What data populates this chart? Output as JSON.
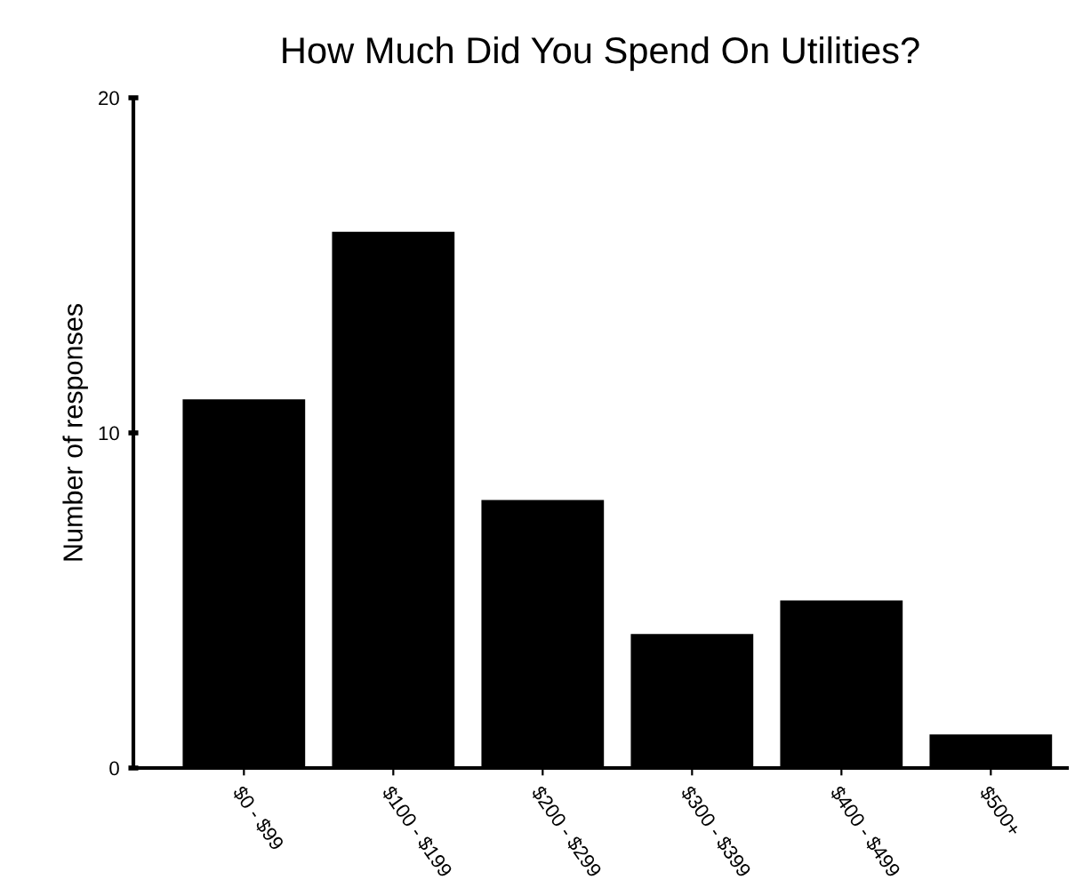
{
  "chart_data": {
    "type": "bar",
    "title": "How Much Did You Spend On Utilities?",
    "ylabel": "Number of responses",
    "categories": [
      "$0 - $99",
      "$100 - $199",
      "$200 - $299",
      "$300 - $399",
      "$400 - $499",
      "$500+"
    ],
    "values": [
      11,
      16,
      8,
      4,
      5,
      1
    ],
    "color": "#000000",
    "ylim": [
      0,
      20
    ],
    "yticks": [
      0,
      10,
      20
    ],
    "grid": false,
    "legend": false
  }
}
